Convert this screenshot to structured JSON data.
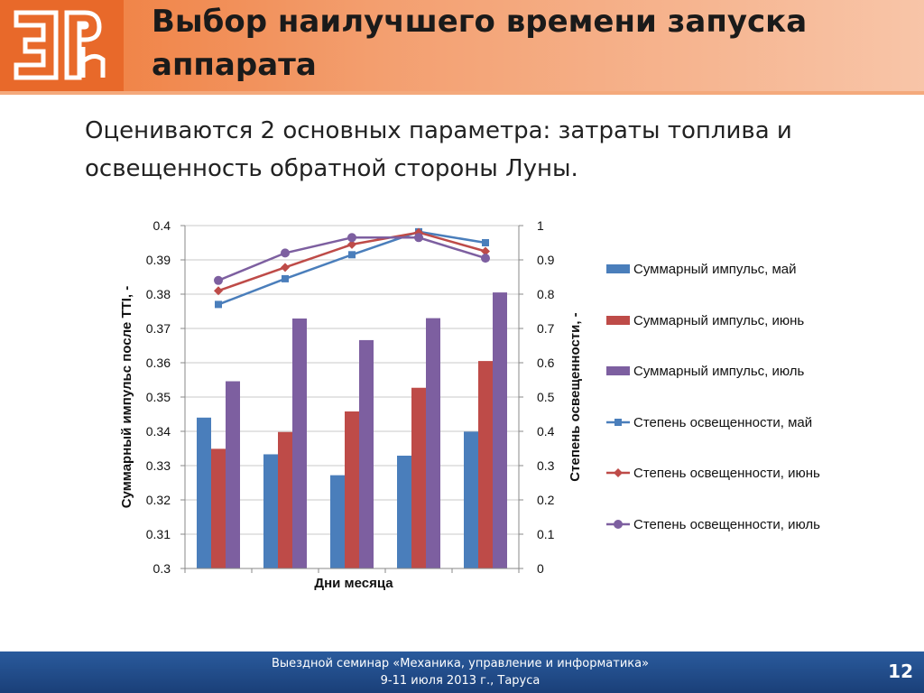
{
  "slide": {
    "title": "Выбор наилучшего времени запуска аппарата",
    "subtitle": "Оцениваются 2 основных параметра: затраты топлива и освещенность обратной стороны Луны.",
    "page_number": "12",
    "footer": {
      "line1": "Выездной семинар «Механика, управление и информатика»",
      "line2": "9-11 июля 2013 г., Таруса"
    }
  },
  "colors": {
    "header_orange": "#ef7836",
    "footer_blue": "#1f4a8a"
  },
  "chart_data": {
    "type": "bar",
    "xlabel": "Дни месяца",
    "ylabel_left": "Суммарный импульс после TTI, -",
    "ylabel_right": "Степень освещенности, -",
    "categories": [
      "",
      "",
      "",
      "",
      ""
    ],
    "y_left": {
      "min": 0.3,
      "max": 0.4,
      "ticks": [
        "0.3",
        "0.31",
        "0.32",
        "0.33",
        "0.34",
        "0.35",
        "0.36",
        "0.37",
        "0.38",
        "0.39",
        "0.4"
      ]
    },
    "y_right": {
      "min": 0,
      "max": 1,
      "ticks": [
        "0",
        "0.1",
        "0.2",
        "0.3",
        "0.4",
        "0.5",
        "0.6",
        "0.7",
        "0.8",
        "0.9",
        "1"
      ]
    },
    "grid": true,
    "legend_position": "right",
    "bar_series": [
      {
        "name": "Суммарный импульс, май",
        "color": "#4a7ebb",
        "values": [
          0.344,
          0.3333,
          0.3272,
          0.3329,
          0.3399
        ]
      },
      {
        "name": "Суммарный импульс, июнь",
        "color": "#be4b48",
        "values": [
          0.3349,
          0.3398,
          0.3458,
          0.3527,
          0.3605
        ]
      },
      {
        "name": "Суммарный импульс, июль",
        "color": "#7d5fa0",
        "values": [
          0.3546,
          0.3729,
          0.3666,
          0.373,
          0.3805
        ]
      }
    ],
    "line_series": [
      {
        "name": "Степень освещенности, май",
        "color": "#4a7ebb",
        "marker": "square",
        "values": [
          0.77,
          0.845,
          0.915,
          0.982,
          0.95
        ]
      },
      {
        "name": "Степень освещенности, июнь",
        "color": "#be4b48",
        "marker": "diamond",
        "values": [
          0.81,
          0.878,
          0.945,
          0.98,
          0.925
        ]
      },
      {
        "name": "Степень освещенности, июль",
        "color": "#7d5fa0",
        "marker": "circle",
        "values": [
          0.84,
          0.92,
          0.965,
          0.965,
          0.905
        ]
      }
    ]
  }
}
